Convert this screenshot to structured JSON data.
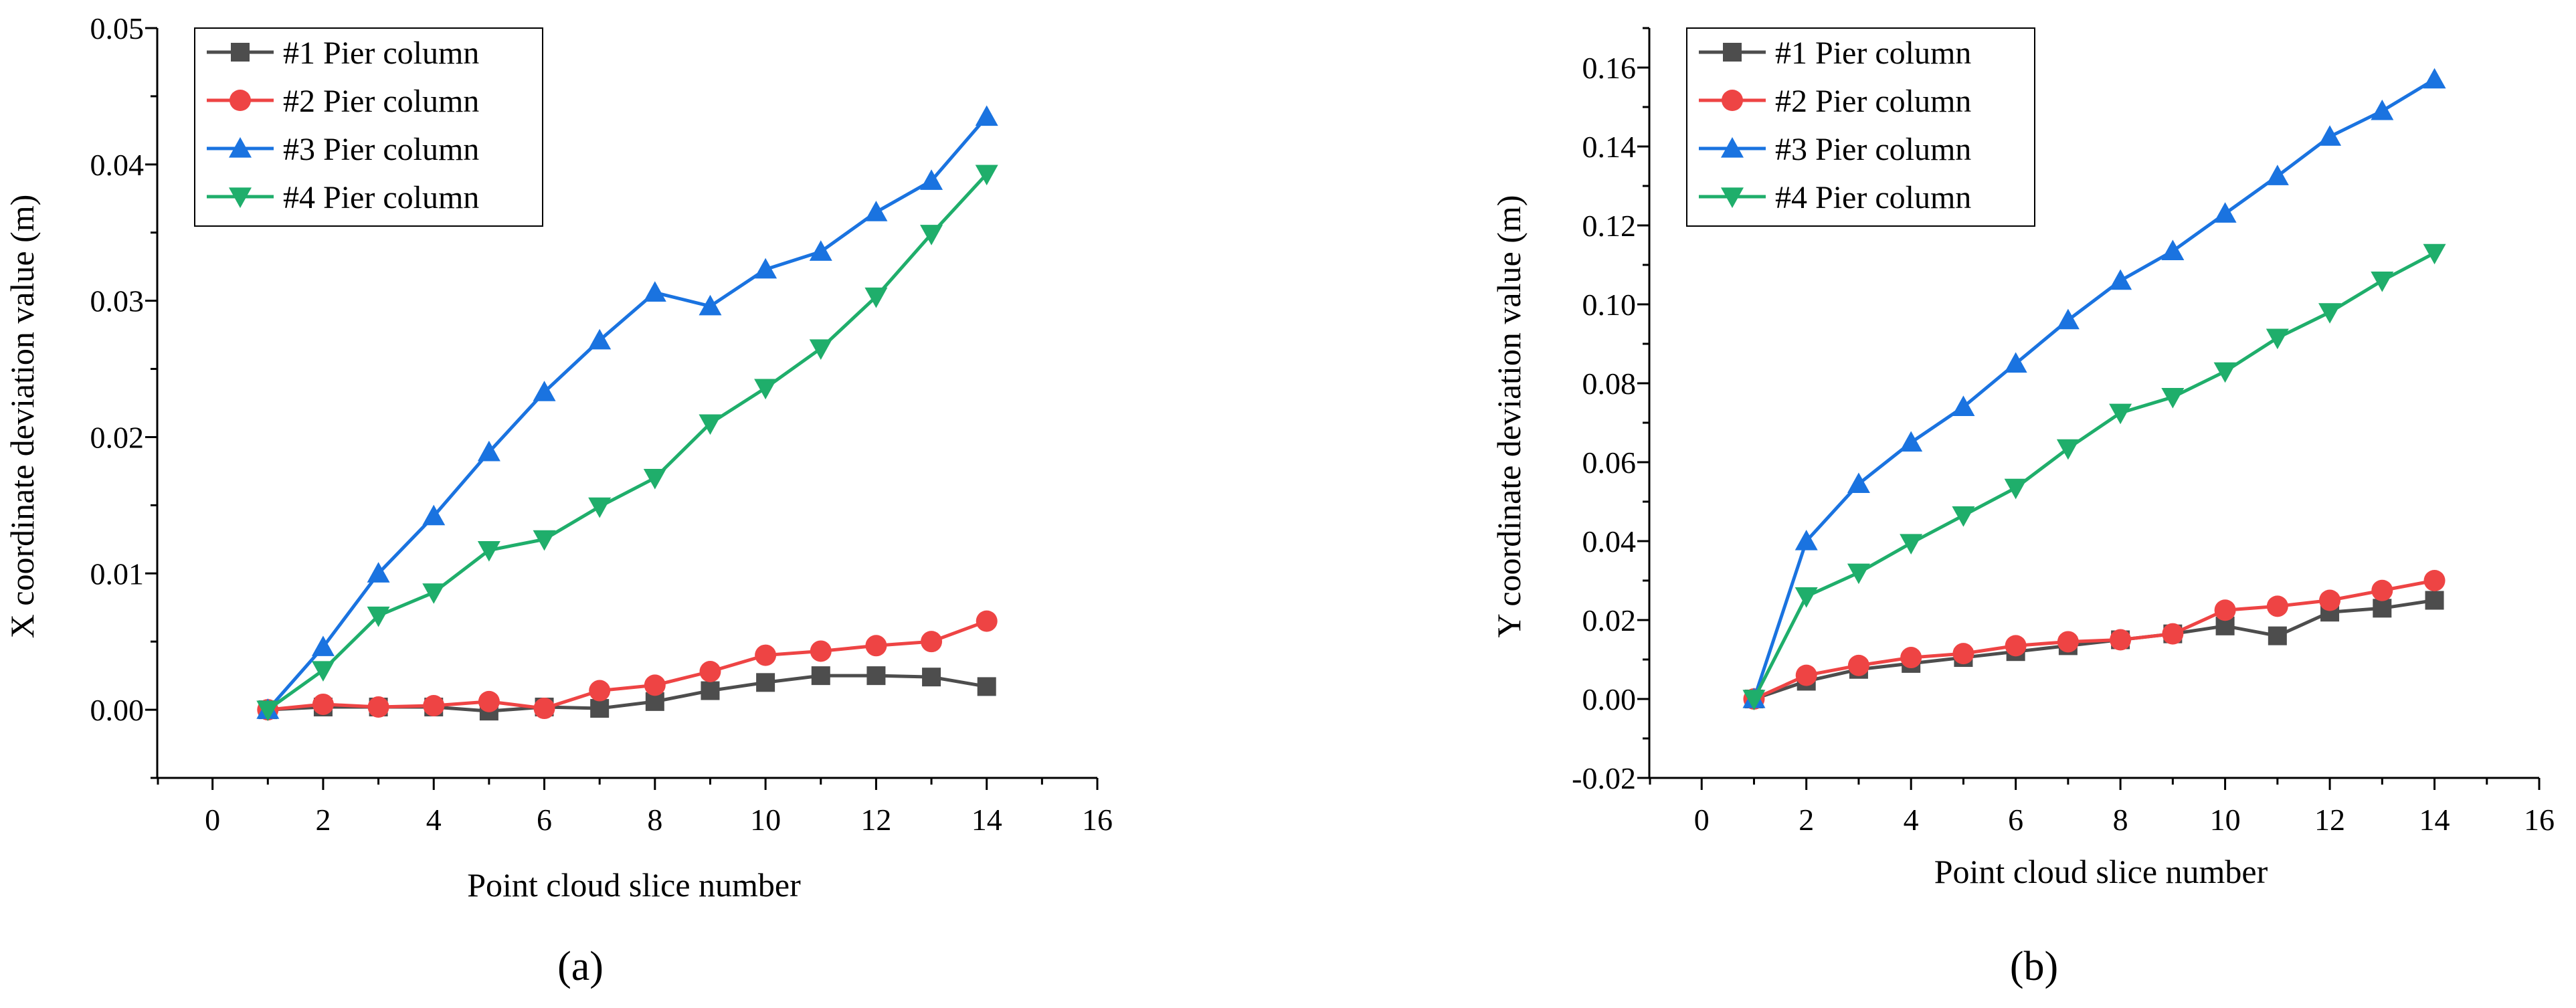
{
  "chart_data": [
    {
      "panel_label": "(a)",
      "type": "line",
      "title": "",
      "xlabel": "Point cloud slice number",
      "ylabel": "X coordinate deviation value (m)",
      "xlim": [
        -1,
        16
      ],
      "ylim": [
        -0.005,
        0.05
      ],
      "xticks": [
        0,
        2,
        4,
        6,
        8,
        10,
        12,
        14,
        16
      ],
      "yticks": [
        0.0,
        0.01,
        0.02,
        0.03,
        0.04,
        0.05
      ],
      "ytick_labels": [
        "0.00",
        "0.01",
        "0.02",
        "0.03",
        "0.04",
        "0.05"
      ],
      "legend_position": "top-left",
      "x": [
        1,
        2,
        3,
        4,
        5,
        6,
        7,
        8,
        9,
        10,
        11,
        12,
        13,
        14
      ],
      "series": [
        {
          "name": "#1 Pier column",
          "color": "#4d4d4d",
          "marker": "square",
          "values": [
            0.0,
            0.0002,
            0.0002,
            0.0002,
            -0.0001,
            0.0002,
            0.0001,
            0.0006,
            0.0014,
            0.002,
            0.0025,
            0.0025,
            0.0024,
            0.0017
          ]
        },
        {
          "name": "#2 Pier column",
          "color": "#ee4444",
          "marker": "circle",
          "values": [
            0.0,
            0.0004,
            0.0002,
            0.0003,
            0.0006,
            0.0001,
            0.0014,
            0.0018,
            0.0028,
            0.004,
            0.0043,
            0.0047,
            0.005,
            0.0065
          ]
        },
        {
          "name": "#3 Pier column",
          "color": "#1a73e0",
          "marker": "triangle-up",
          "values": [
            0.0,
            0.0046,
            0.01,
            0.0142,
            0.0189,
            0.0233,
            0.0271,
            0.0306,
            0.0296,
            0.0323,
            0.0336,
            0.0365,
            0.0388,
            0.0435
          ]
        },
        {
          "name": "#4 Pier column",
          "color": "#1fae6b",
          "marker": "triangle-down",
          "values": [
            0.0,
            0.0029,
            0.0069,
            0.0086,
            0.0117,
            0.0125,
            0.0149,
            0.017,
            0.021,
            0.0236,
            0.0265,
            0.0303,
            0.0349,
            0.0393
          ]
        }
      ]
    },
    {
      "panel_label": "(b)",
      "type": "line",
      "title": "",
      "xlabel": "Point cloud slice number",
      "ylabel": "Y coordinate deviation value (m)",
      "xlim": [
        -1,
        16
      ],
      "ylim": [
        -0.02,
        0.17
      ],
      "xticks": [
        0,
        2,
        4,
        6,
        8,
        10,
        12,
        14,
        16
      ],
      "yticks": [
        -0.02,
        0.0,
        0.02,
        0.04,
        0.06,
        0.08,
        0.1,
        0.12,
        0.14,
        0.16
      ],
      "ytick_labels": [
        "-0.02",
        "0.00",
        "0.02",
        "0.04",
        "0.06",
        "0.08",
        "0.10",
        "0.12",
        "0.14",
        "0.16"
      ],
      "legend_position": "top-left",
      "x": [
        1,
        2,
        3,
        4,
        5,
        6,
        7,
        8,
        9,
        10,
        11,
        12,
        13,
        14
      ],
      "series": [
        {
          "name": "#1 Pier column",
          "color": "#4d4d4d",
          "marker": "square",
          "values": [
            0.0,
            0.0045,
            0.0075,
            0.009,
            0.0105,
            0.012,
            0.0135,
            0.015,
            0.0165,
            0.0185,
            0.016,
            0.022,
            0.023,
            0.025
          ]
        },
        {
          "name": "#2 Pier column",
          "color": "#ee4444",
          "marker": "circle",
          "values": [
            0.0,
            0.006,
            0.0085,
            0.0105,
            0.0115,
            0.0135,
            0.0145,
            0.015,
            0.0165,
            0.0225,
            0.0235,
            0.025,
            0.0275,
            0.03
          ]
        },
        {
          "name": "#3 Pier column",
          "color": "#1a73e0",
          "marker": "triangle-up",
          "values": [
            0.0,
            0.04,
            0.0545,
            0.065,
            0.074,
            0.085,
            0.096,
            0.106,
            0.1135,
            0.123,
            0.1325,
            0.1425,
            0.149,
            0.157
          ]
        },
        {
          "name": "#4 Pier column",
          "color": "#1fae6b",
          "marker": "triangle-down",
          "values": [
            0.0,
            0.026,
            0.032,
            0.0395,
            0.0465,
            0.0535,
            0.0635,
            0.0725,
            0.0765,
            0.083,
            0.0915,
            0.098,
            0.106,
            0.113
          ]
        }
      ]
    }
  ]
}
